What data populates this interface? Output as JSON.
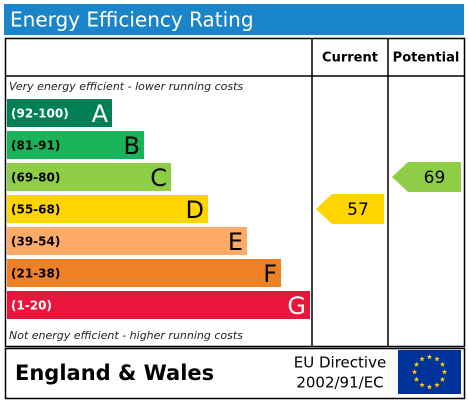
{
  "header": {
    "title": "Energy Efficiency Rating"
  },
  "columns": [
    "Current",
    "Potential"
  ],
  "notes": {
    "top": "Very energy efficient - lower running costs",
    "bottom": "Not energy efficient - higher running costs"
  },
  "bands": [
    {
      "range": "(92-100)",
      "letter": "A",
      "color": "#008054"
    },
    {
      "range": "(81-91)",
      "letter": "B",
      "color": "#19b459"
    },
    {
      "range": "(69-80)",
      "letter": "C",
      "color": "#8dce46"
    },
    {
      "range": "(55-68)",
      "letter": "D",
      "color": "#ffd500"
    },
    {
      "range": "(39-54)",
      "letter": "E",
      "color": "#fcaa65"
    },
    {
      "range": "(21-38)",
      "letter": "F",
      "color": "#ef8023"
    },
    {
      "range": "(1-20)",
      "letter": "G",
      "color": "#e9153b"
    }
  ],
  "ratings": [
    {
      "value": 57
    },
    {
      "value": 69
    }
  ],
  "footer": {
    "region": "England & Wales",
    "directive": [
      "EU Directive",
      "2002/91/EC"
    ]
  }
}
